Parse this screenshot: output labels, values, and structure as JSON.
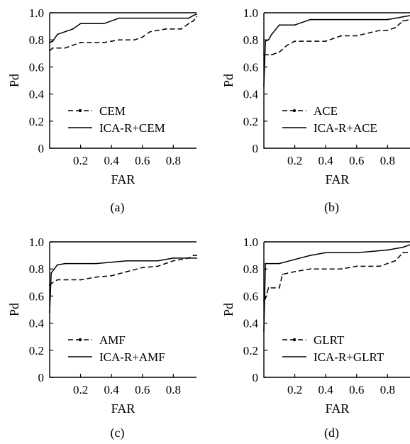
{
  "chart_data": [
    {
      "type": "line",
      "caption": "(a)",
      "xlabel": "FAR",
      "ylabel": "Pd",
      "xlim": [
        0,
        0.95
      ],
      "ylim": [
        0,
        1.0
      ],
      "xticks": [
        "0.2",
        "0.4",
        "0.6",
        "0.8"
      ],
      "yticks": [
        "0",
        "0.2",
        "0.4",
        "0.6",
        "0.8",
        "1.0"
      ],
      "legend_position": "lower-left",
      "series": [
        {
          "name": "CEM",
          "style": "dashed",
          "x": [
            0.0,
            0.02,
            0.05,
            0.1,
            0.15,
            0.2,
            0.35,
            0.45,
            0.55,
            0.6,
            0.65,
            0.75,
            0.85,
            0.9,
            0.93,
            0.95
          ],
          "y": [
            0.72,
            0.74,
            0.74,
            0.74,
            0.76,
            0.78,
            0.78,
            0.8,
            0.8,
            0.82,
            0.86,
            0.88,
            0.88,
            0.92,
            0.94,
            0.97
          ]
        },
        {
          "name": "ICA-R+CEM",
          "style": "solid",
          "x": [
            0.0,
            0.02,
            0.05,
            0.1,
            0.15,
            0.2,
            0.35,
            0.45,
            0.6,
            0.85,
            0.9,
            0.93,
            0.95
          ],
          "y": [
            0.78,
            0.79,
            0.84,
            0.86,
            0.88,
            0.92,
            0.92,
            0.96,
            0.96,
            0.96,
            0.96,
            0.98,
            0.99
          ]
        }
      ]
    },
    {
      "type": "line",
      "caption": "(b)",
      "xlabel": "FAR",
      "ylabel": "Pd",
      "xlim": [
        0,
        0.95
      ],
      "ylim": [
        0,
        1.0
      ],
      "xticks": [
        "0.2",
        "0.4",
        "0.6",
        "0.8"
      ],
      "yticks": [
        "0",
        "0.2",
        "0.4",
        "0.6",
        "0.8",
        "1.0"
      ],
      "legend_position": "lower-left",
      "series": [
        {
          "name": "ACE",
          "style": "dashed",
          "x": [
            0.0,
            0.05,
            0.1,
            0.15,
            0.2,
            0.4,
            0.5,
            0.6,
            0.75,
            0.8,
            0.85,
            0.9,
            0.95
          ],
          "y": [
            0.69,
            0.69,
            0.71,
            0.76,
            0.79,
            0.79,
            0.83,
            0.83,
            0.87,
            0.87,
            0.89,
            0.94,
            0.95
          ]
        },
        {
          "name": "ICA-R+ACE",
          "style": "solid",
          "x": [
            0.0,
            0.01,
            0.03,
            0.05,
            0.1,
            0.2,
            0.3,
            0.5,
            0.8,
            0.9,
            0.95
          ],
          "y": [
            0.46,
            0.79,
            0.8,
            0.84,
            0.91,
            0.91,
            0.95,
            0.95,
            0.95,
            0.97,
            0.98
          ]
        }
      ]
    },
    {
      "type": "line",
      "caption": "(c)",
      "xlabel": "FAR",
      "ylabel": "Pd",
      "xlim": [
        0,
        0.95
      ],
      "ylim": [
        0,
        1.0
      ],
      "xticks": [
        "0.2",
        "0.4",
        "0.6",
        "0.8"
      ],
      "yticks": [
        "0",
        "0.2",
        "0.4",
        "0.6",
        "0.8",
        "1.0"
      ],
      "legend_position": "lower-left",
      "series": [
        {
          "name": "AMF",
          "style": "dashed",
          "x": [
            0.0,
            0.02,
            0.05,
            0.1,
            0.2,
            0.3,
            0.4,
            0.5,
            0.6,
            0.7,
            0.8,
            0.9,
            0.93,
            0.95
          ],
          "y": [
            0.68,
            0.7,
            0.72,
            0.72,
            0.72,
            0.74,
            0.75,
            0.78,
            0.81,
            0.82,
            0.86,
            0.88,
            0.9,
            0.9
          ]
        },
        {
          "name": "ICA-R+AMF",
          "style": "solid",
          "x": [
            0.0,
            0.01,
            0.03,
            0.05,
            0.1,
            0.3,
            0.5,
            0.7,
            0.8,
            0.95
          ],
          "y": [
            0.48,
            0.77,
            0.8,
            0.83,
            0.84,
            0.84,
            0.86,
            0.86,
            0.88,
            0.88
          ]
        }
      ]
    },
    {
      "type": "line",
      "caption": "(d)",
      "xlabel": "FAR",
      "ylabel": "Pd",
      "xlim": [
        0,
        0.95
      ],
      "ylim": [
        0,
        1.0
      ],
      "xticks": [
        "0.2",
        "0.4",
        "0.6",
        "0.8"
      ],
      "yticks": [
        "0",
        "0.2",
        "0.4",
        "0.6",
        "0.8",
        "1.0"
      ],
      "legend_position": "lower-left",
      "series": [
        {
          "name": "GLRT",
          "style": "dashed",
          "x": [
            0.0,
            0.01,
            0.03,
            0.1,
            0.12,
            0.2,
            0.3,
            0.5,
            0.6,
            0.75,
            0.85,
            0.9,
            0.95
          ],
          "y": [
            0.57,
            0.58,
            0.66,
            0.66,
            0.76,
            0.78,
            0.8,
            0.8,
            0.82,
            0.82,
            0.86,
            0.92,
            0.92
          ]
        },
        {
          "name": "ICA-R+GLRT",
          "style": "solid",
          "x": [
            0.0,
            0.01,
            0.1,
            0.2,
            0.3,
            0.4,
            0.6,
            0.8,
            0.9,
            0.95
          ],
          "y": [
            0.34,
            0.84,
            0.84,
            0.87,
            0.9,
            0.92,
            0.92,
            0.94,
            0.96,
            0.98
          ]
        }
      ]
    }
  ]
}
